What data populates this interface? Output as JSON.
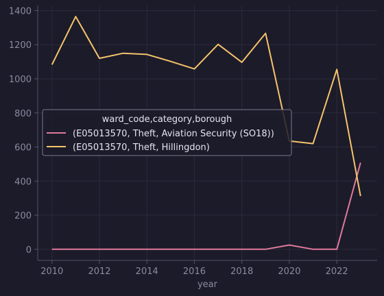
{
  "chart_data": {
    "type": "line",
    "title": "",
    "xlabel": "year",
    "ylabel": "",
    "xlim": [
      2009.4,
      2023.7
    ],
    "ylim": [
      -65,
      1430
    ],
    "x_ticks": [
      2010,
      2012,
      2014,
      2016,
      2018,
      2020,
      2022
    ],
    "y_ticks": [
      0,
      200,
      400,
      600,
      800,
      1000,
      1200,
      1400
    ],
    "grid": true,
    "legend": {
      "title": "ward_code,category,borough",
      "placement": "center-left"
    },
    "x": [
      2010,
      2011,
      2012,
      2013,
      2014,
      2015,
      2016,
      2017,
      2018,
      2019,
      2020,
      2021,
      2022,
      2023
    ],
    "series": [
      {
        "name": "(E05013570, Theft, Aviation Security (SO18))",
        "color": "#e07a9c",
        "values": [
          0,
          0,
          0,
          0,
          0,
          0,
          0,
          0,
          0,
          0,
          25,
          0,
          0,
          508
        ]
      },
      {
        "name": "(E05013570, Theft, Hillingdon)",
        "color": "#f6c46c",
        "values": [
          1083,
          1365,
          1120,
          1150,
          1143,
          1102,
          1058,
          1202,
          1097,
          1267,
          635,
          620,
          1055,
          312
        ]
      }
    ]
  }
}
